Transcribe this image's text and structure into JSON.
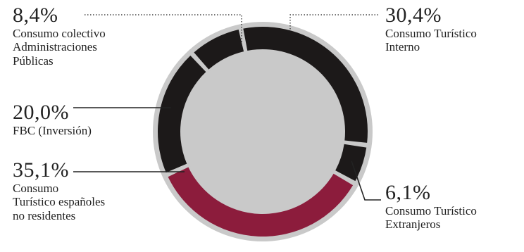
{
  "chart_data": {
    "type": "pie",
    "style": "donut",
    "slices": [
      {
        "key": "s1",
        "label": "Consumo Turístico\nInterno",
        "value": 30.4,
        "display": "30,4%",
        "color": "#1c1919"
      },
      {
        "key": "s2",
        "label": "Consumo Turístico\nExtranjeros",
        "value": 6.1,
        "display": "6,1%",
        "color": "#1c1919"
      },
      {
        "key": "s3",
        "label": "Consumo\nTurístico españoles\nno residentes",
        "value": 35.1,
        "display": "35,1%",
        "color": "#8c1c3c"
      },
      {
        "key": "s4",
        "label": "FBC (Inversión)",
        "value": 20.0,
        "display": "20,0%",
        "color": "#1c1919"
      },
      {
        "key": "s5",
        "label": "Consumo colectivo\nAdministraciones\nPúblicas",
        "value": 8.4,
        "display": "8,4%",
        "color": "#1c1919"
      }
    ],
    "ring_color": "#c9c9c9",
    "center_color": "#c9c9c9",
    "legend": "none"
  }
}
